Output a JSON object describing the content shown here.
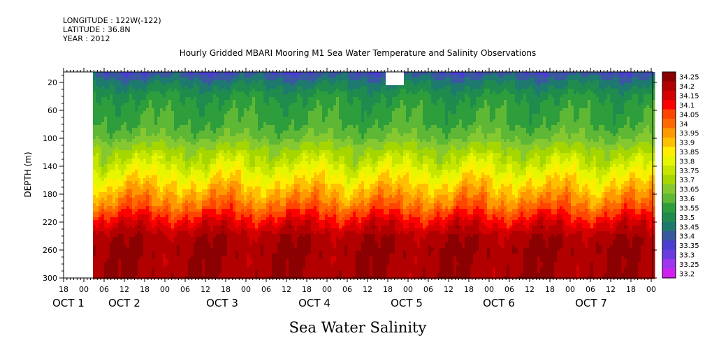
{
  "header": {
    "longitude": "LONGITUDE : 122W(-122)",
    "latitude": "LATITUDE : 36.8N",
    "year": "YEAR : 2012"
  },
  "chart_data": {
    "type": "heatmap",
    "title": "Hourly Gridded MBARI Mooring M1 Sea Water Temperature and Salinity Observations",
    "xlabel": "Sea Water Salinity",
    "ylabel": "DEPTH (m)",
    "yticks": [
      20,
      60,
      100,
      140,
      180,
      220,
      260,
      300
    ],
    "ylim": [
      300,
      5
    ],
    "hour_ticks": [
      "18",
      "00",
      "06",
      "12",
      "18",
      "00",
      "06",
      "12",
      "18",
      "00",
      "06",
      "12",
      "18",
      "00",
      "06",
      "12",
      "18",
      "00",
      "06",
      "12",
      "18",
      "00",
      "06",
      "12",
      "18",
      "00",
      "06",
      "12",
      "18",
      "00"
    ],
    "date_labels": [
      "OCT 1",
      "OCT 2",
      "OCT 3",
      "OCT 4",
      "OCT 5",
      "OCT 6",
      "OCT 7"
    ],
    "colorbar": {
      "levels": [
        "34.25",
        "34.2",
        "34.15",
        "34.1",
        "34.05",
        "34",
        "33.95",
        "33.9",
        "33.85",
        "33.8",
        "33.75",
        "33.7",
        "33.65",
        "33.6",
        "33.55",
        "33.5",
        "33.45",
        "33.4",
        "33.35",
        "33.3",
        "33.25",
        "33.2"
      ],
      "colors": [
        "#8b0000",
        "#b20000",
        "#d50000",
        "#ff0000",
        "#ff4400",
        "#ff6a00",
        "#ff9900",
        "#ffc000",
        "#ffee00",
        "#e6f500",
        "#c6e600",
        "#a6d600",
        "#86c830",
        "#5fb835",
        "#2e9e3c",
        "#1f8c4e",
        "#1e7a6e",
        "#3a58a0",
        "#4a3fd0",
        "#6a3ce0",
        "#a035f0",
        "#d020f0"
      ],
      "note": "levels listed top to bottom of the color bar"
    },
    "depth_salinity_profile": {
      "depth_m": [
        5,
        20,
        40,
        60,
        80,
        100,
        120,
        140,
        160,
        180,
        200,
        220,
        240,
        260,
        280,
        300
      ],
      "salinity": [
        33.35,
        33.43,
        33.5,
        33.53,
        33.55,
        33.6,
        33.68,
        33.76,
        33.84,
        33.92,
        34.0,
        34.1,
        34.18,
        34.2,
        34.19,
        34.2
      ]
    },
    "data_start": "OCT 1 21:00 (data begins after 00 on OCT 2 axis position)",
    "grid": false,
    "legend": "right"
  }
}
